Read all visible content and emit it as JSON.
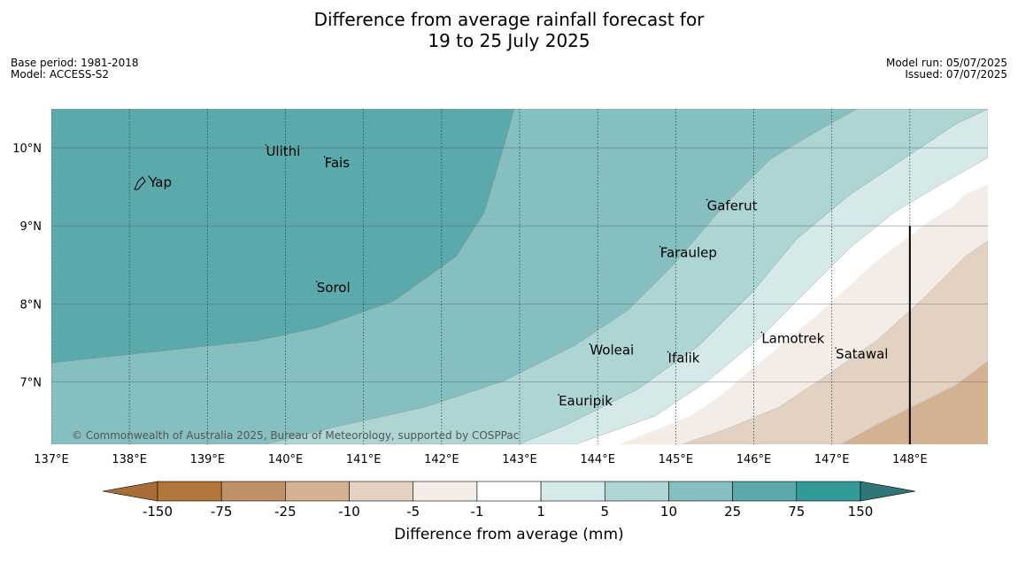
{
  "title_line1": "Difference from average rainfall forecast for",
  "title_line2": "19 to 25 July 2025",
  "base_period": "Base period: 1981-2018",
  "model": "Model: ACCESS-S2",
  "model_run": "Model run: 05/07/2025",
  "issued": "Issued: 07/07/2025",
  "copyright": "© Commonwealth of Australia 2025, Bureau of Meteorology, supported by COSPPac",
  "map": {
    "lon_min": 137.0,
    "lon_max": 149.0,
    "lat_min": 6.2,
    "lat_max": 10.5,
    "x_ticks": [
      {
        "value": 137,
        "label": "137°E"
      },
      {
        "value": 138,
        "label": "138°E"
      },
      {
        "value": 139,
        "label": "139°E"
      },
      {
        "value": 140,
        "label": "140°E"
      },
      {
        "value": 141,
        "label": "141°E"
      },
      {
        "value": 142,
        "label": "142°E"
      },
      {
        "value": 143,
        "label": "143°E"
      },
      {
        "value": 144,
        "label": "144°E"
      },
      {
        "value": 145,
        "label": "145°E"
      },
      {
        "value": 146,
        "label": "146°E"
      },
      {
        "value": 147,
        "label": "147°E"
      },
      {
        "value": 148,
        "label": "148°E"
      }
    ],
    "y_ticks": [
      {
        "value": 10,
        "label": "10°N"
      },
      {
        "value": 9,
        "label": "9°N"
      },
      {
        "value": 8,
        "label": "8°N"
      },
      {
        "value": 7,
        "label": "7°N"
      }
    ],
    "places": [
      {
        "name": "Yap",
        "lon": 138.25,
        "lat": 9.5
      },
      {
        "name": "Ulithi",
        "lon": 139.75,
        "lat": 9.9
      },
      {
        "name": "Fais",
        "lon": 140.5,
        "lat": 9.75
      },
      {
        "name": "Gaferut",
        "lon": 145.4,
        "lat": 9.2
      },
      {
        "name": "Faraulep",
        "lon": 144.8,
        "lat": 8.6
      },
      {
        "name": "Sorol",
        "lon": 140.4,
        "lat": 8.15
      },
      {
        "name": "Lamotrek",
        "lon": 146.1,
        "lat": 7.5
      },
      {
        "name": "Satawal",
        "lon": 147.05,
        "lat": 7.3
      },
      {
        "name": "Woleai",
        "lon": 143.9,
        "lat": 7.35
      },
      {
        "name": "Ifalik",
        "lon": 144.9,
        "lat": 7.25
      },
      {
        "name": "Eauripik",
        "lon": 143.5,
        "lat": 6.7
      }
    ],
    "boundary_line": {
      "lon": 148.0,
      "lat_top": 9.0,
      "lat_bottom": 6.2
    }
  },
  "colorbar": {
    "title": "Difference from average (mm)",
    "ticks": [
      "-150",
      "-75",
      "-25",
      "-10",
      "-5",
      "-1",
      "1",
      "5",
      "10",
      "25",
      "75",
      "150"
    ],
    "colors": [
      "#a86e37",
      "#b17639",
      "#c09068",
      "#d4b190",
      "#e3d1c2",
      "#f4ece7",
      "#ffffff",
      "#d5e9e8",
      "#acd5d4",
      "#86bfbf",
      "#5aaaab",
      "#339a98",
      "#2f7677"
    ]
  }
}
